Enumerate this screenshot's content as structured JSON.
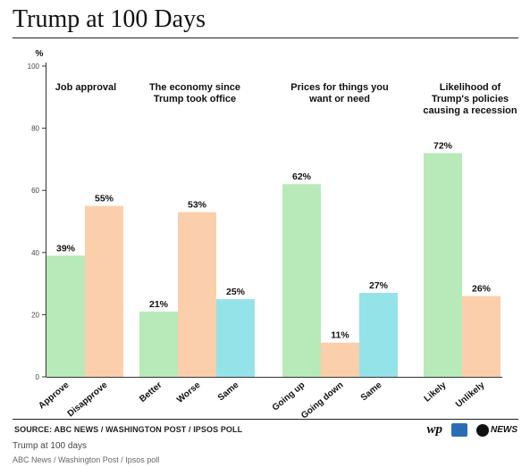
{
  "header": {
    "title": "Trump at 100 Days"
  },
  "chart_data": {
    "type": "bar",
    "ylabel": "%",
    "ylim": [
      0,
      100
    ],
    "yticks": [
      0,
      20,
      40,
      60,
      80,
      100
    ],
    "grid": false,
    "groups": [
      {
        "title": "Job approval",
        "bars": [
          {
            "label": "Approve",
            "value": 39,
            "color": "#b7eab8"
          },
          {
            "label": "Disapprove",
            "value": 55,
            "color": "#fbcfab"
          }
        ]
      },
      {
        "title": "The economy since Trump took office",
        "bars": [
          {
            "label": "Better",
            "value": 21,
            "color": "#b7eab8"
          },
          {
            "label": "Worse",
            "value": 53,
            "color": "#fbcfab"
          },
          {
            "label": "Same",
            "value": 25,
            "color": "#94e3e8"
          }
        ]
      },
      {
        "title": "Prices for things you want or need",
        "bars": [
          {
            "label": "Going up",
            "value": 62,
            "color": "#b7eab8"
          },
          {
            "label": "Going down",
            "value": 11,
            "color": "#fbcfab"
          },
          {
            "label": "Same",
            "value": 27,
            "color": "#94e3e8"
          }
        ]
      },
      {
        "title": "Likelihood of Trump's policies causing a recession",
        "bars": [
          {
            "label": "Likely",
            "value": 72,
            "color": "#b7eab8"
          },
          {
            "label": "Unlikely",
            "value": 26,
            "color": "#fbcfab"
          }
        ]
      }
    ]
  },
  "footer": {
    "source": "SOURCE: ABC NEWS / WASHINGTON POST / IPSOS POLL",
    "logos": {
      "wp": "wp",
      "abc": "NEWS"
    },
    "caption": "Trump at 100 days",
    "credit": "ABC News / Washington Post / Ipsos poll"
  }
}
